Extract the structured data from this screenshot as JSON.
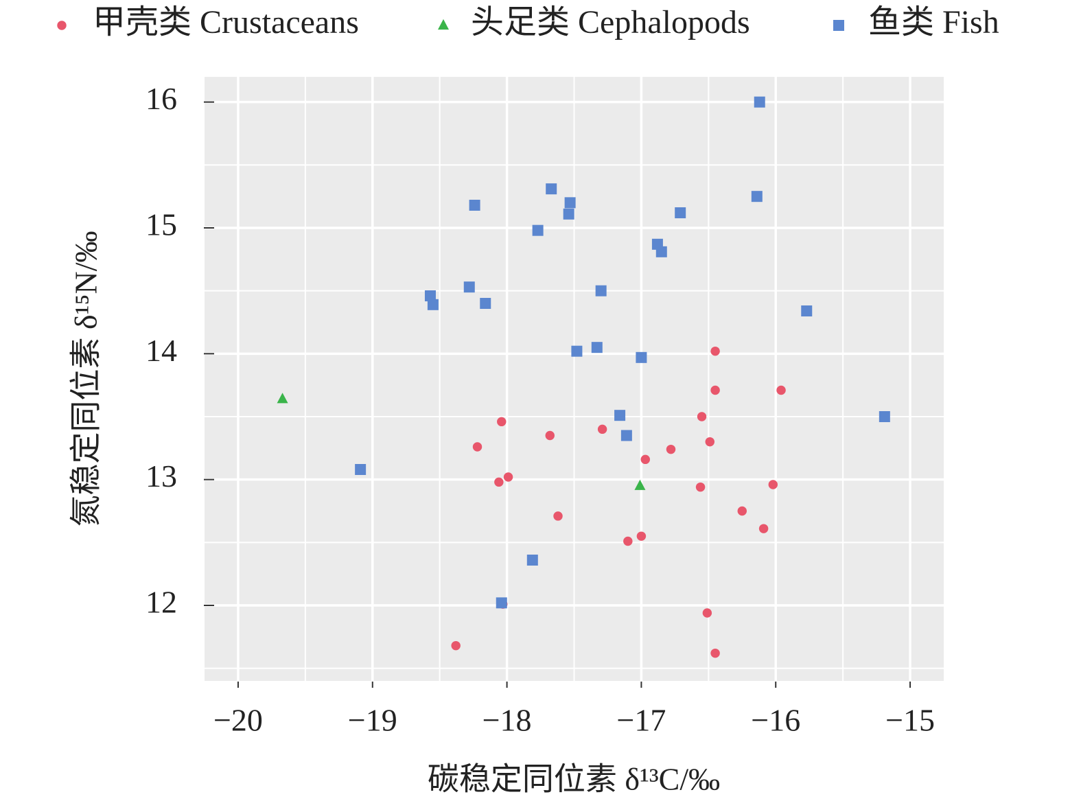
{
  "chart_data": {
    "type": "scatter",
    "x_label": "碳稳定同位素 δ¹³C/‰",
    "y_label": "氮稳定同位素 δ¹⁵N/‰",
    "xlim": [
      -20.25,
      -14.75
    ],
    "ylim": [
      11.4,
      16.2
    ],
    "xticks": [
      {
        "value": -20,
        "label": "−20"
      },
      {
        "value": -19,
        "label": "−19"
      },
      {
        "value": -18,
        "label": "−18"
      },
      {
        "value": -17,
        "label": "−17"
      },
      {
        "value": -16,
        "label": "−16"
      },
      {
        "value": -15,
        "label": "−15"
      }
    ],
    "yticks": [
      12,
      13,
      14,
      15,
      16
    ],
    "grid": true,
    "legend": "top",
    "series": [
      {
        "name": "甲壳类 Crustaceans",
        "color": "#e8566b",
        "marker": "circle",
        "x": [
          -16.45,
          -16.45,
          -15.96,
          -16.55,
          -18.04,
          -17.68,
          -17.29,
          -18.22,
          -16.78,
          -16.49,
          -16.97,
          -17.99,
          -18.06,
          -16.56,
          -16.02,
          -16.25,
          -17.62,
          -16.09,
          -17.1,
          -17.0,
          -18.03,
          -16.51,
          -18.38,
          -16.45
        ],
        "values": [
          14.02,
          13.71,
          13.71,
          13.5,
          13.46,
          13.35,
          13.4,
          13.26,
          13.24,
          13.3,
          13.16,
          13.02,
          12.98,
          12.94,
          12.96,
          12.75,
          12.71,
          12.61,
          12.51,
          12.55,
          12.01,
          11.94,
          11.68,
          11.62
        ]
      },
      {
        "name": "头足类 Cephalopods",
        "color": "#3ab44a",
        "marker": "triangle",
        "x": [
          -19.67,
          -17.01
        ],
        "values": [
          13.64,
          12.95
        ]
      },
      {
        "name": "鱼类 Fish",
        "color": "#5b86cf",
        "marker": "square",
        "x": [
          -16.12,
          -16.14,
          -17.67,
          -17.53,
          -17.54,
          -18.24,
          -16.71,
          -17.77,
          -16.88,
          -16.85,
          -18.28,
          -18.57,
          -18.55,
          -18.16,
          -17.3,
          -15.77,
          -17.48,
          -17.33,
          -17.0,
          -17.16,
          -17.11,
          -15.19,
          -19.09,
          -17.81,
          -18.04
        ],
        "values": [
          16.0,
          15.25,
          15.31,
          15.2,
          15.11,
          15.18,
          15.12,
          14.98,
          14.87,
          14.81,
          14.53,
          14.46,
          14.39,
          14.4,
          14.5,
          14.34,
          14.02,
          14.05,
          13.97,
          13.51,
          13.35,
          13.5,
          13.08,
          12.36,
          12.02
        ]
      }
    ]
  }
}
